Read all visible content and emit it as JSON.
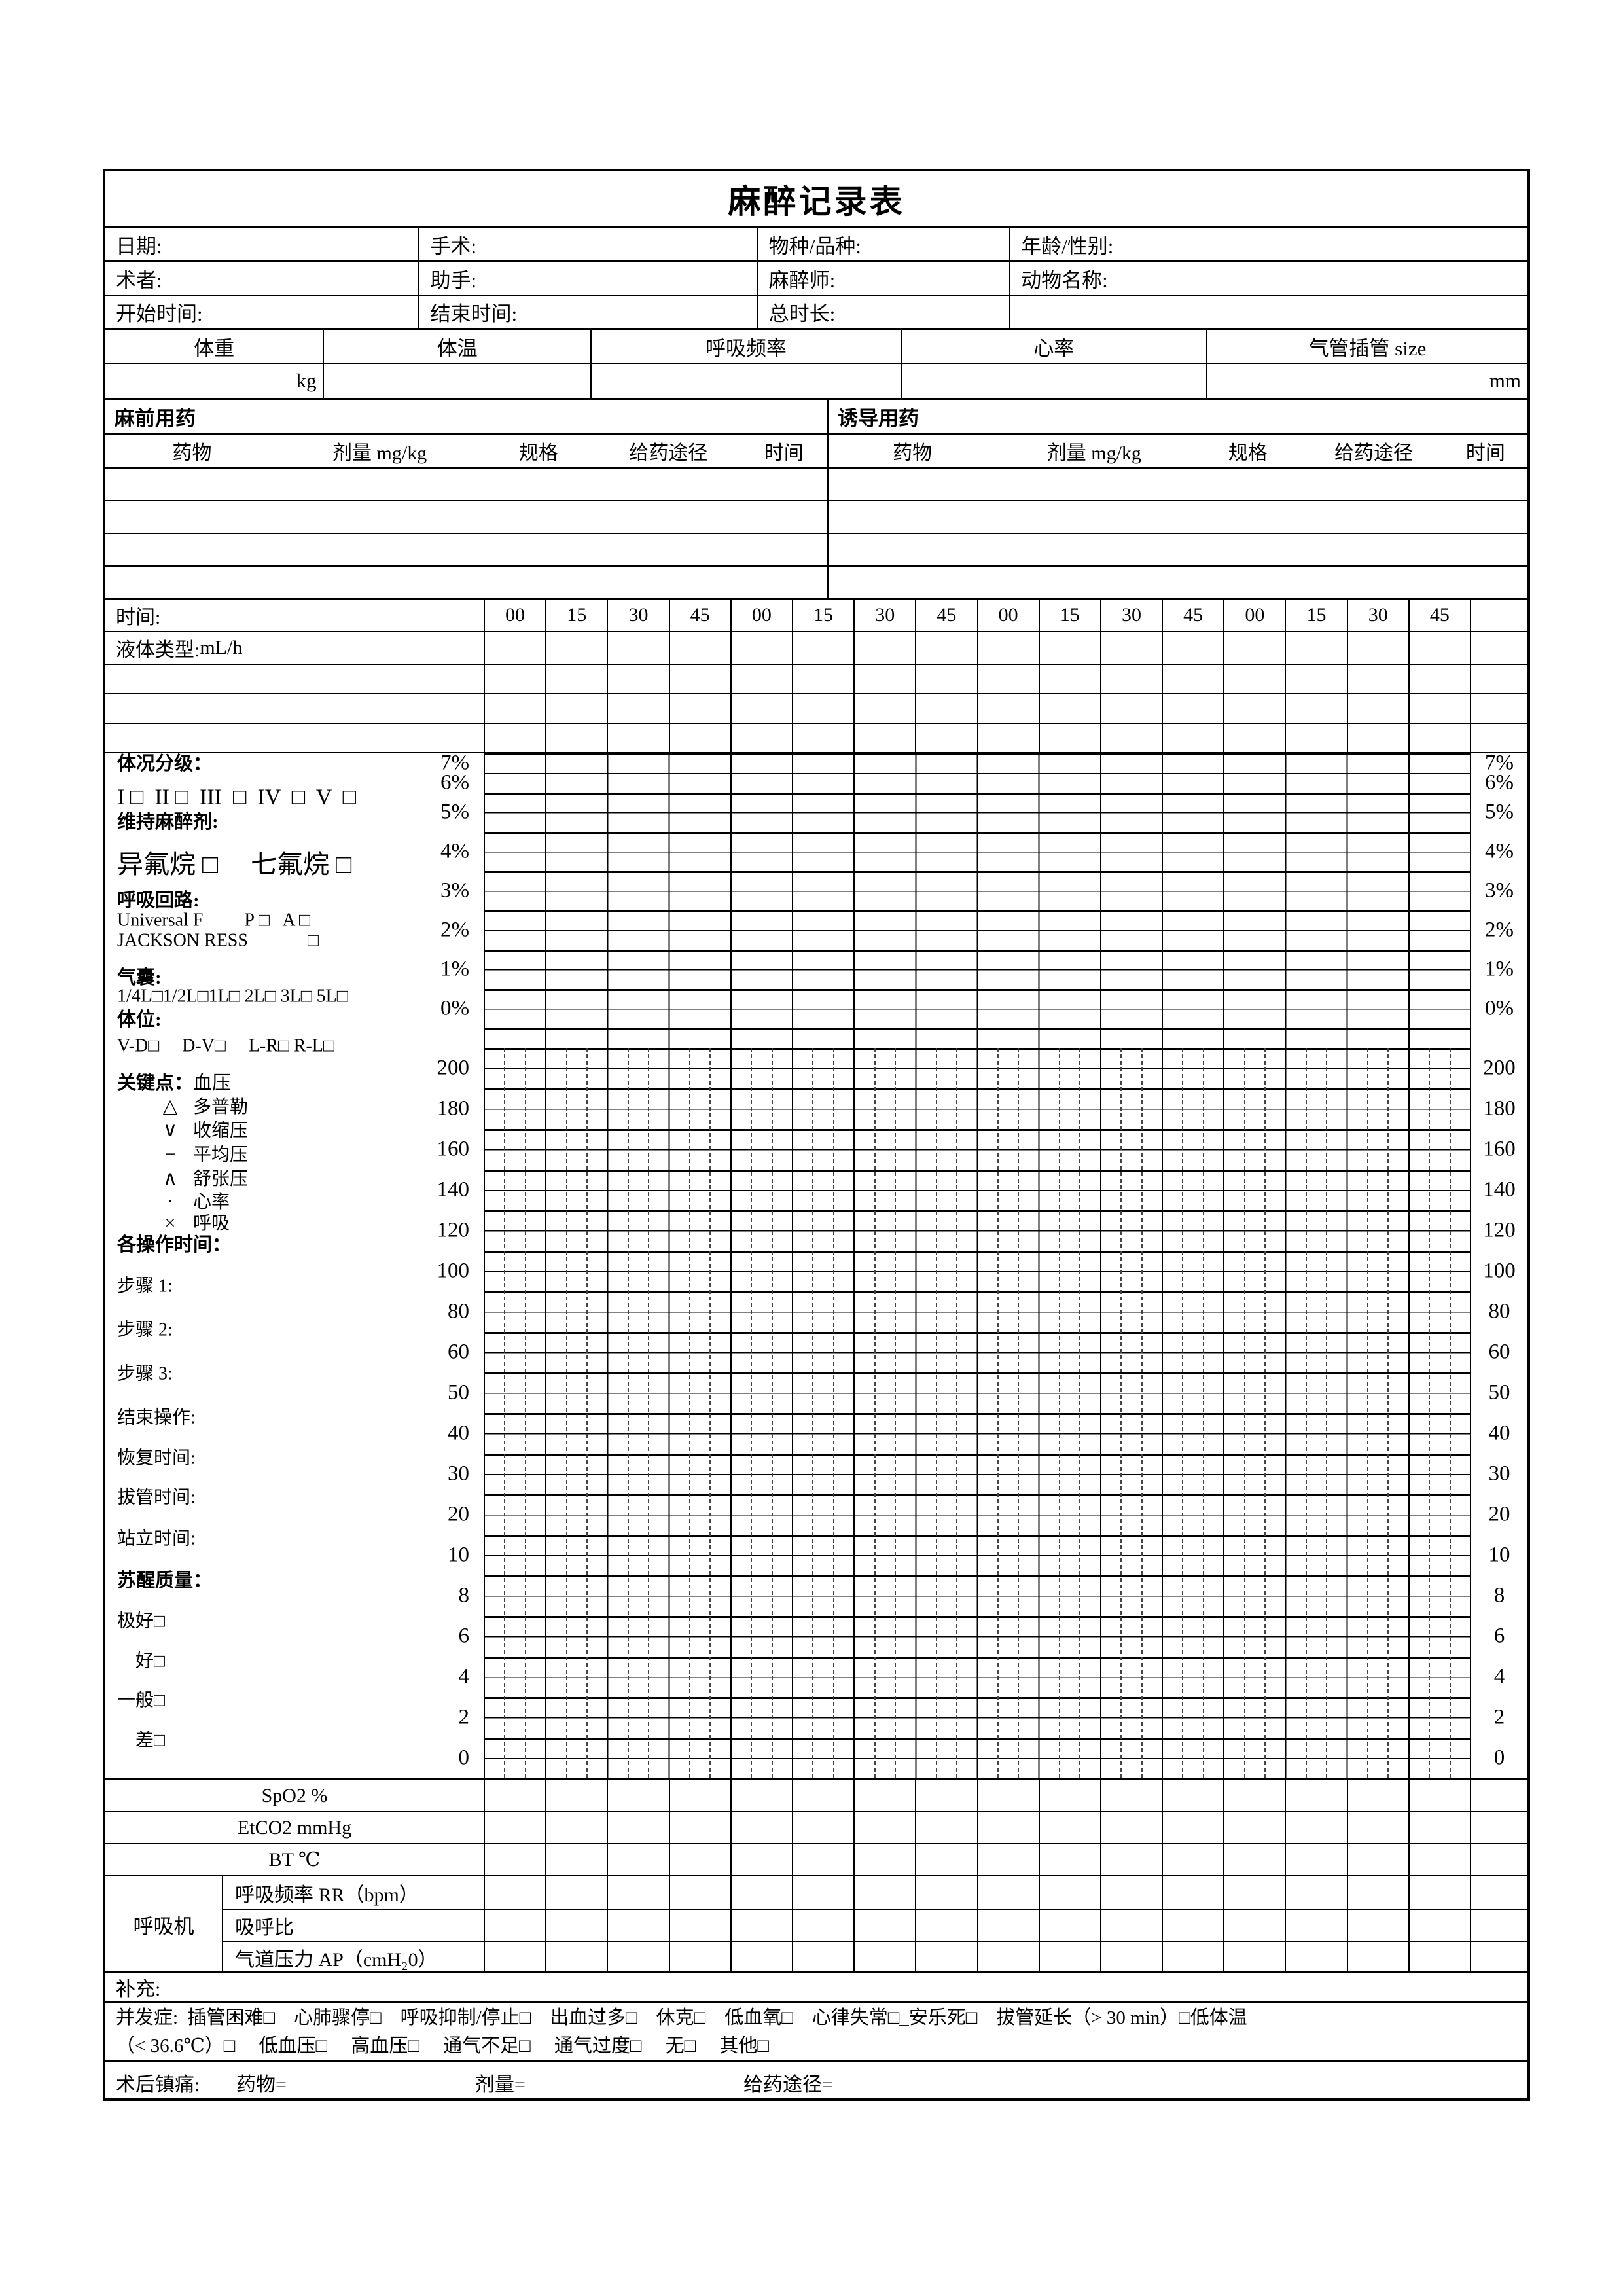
{
  "title": "麻醉记录表",
  "info": {
    "rows": [
      [
        "日期:",
        "手术:",
        "物种/品种:",
        "年龄/性别:"
      ],
      [
        "术者:",
        "助手:",
        "麻醉师:",
        "动物名称:"
      ],
      [
        "开始时间:",
        "结束时间:",
        "总时长:",
        ""
      ]
    ]
  },
  "vitals": {
    "headers": [
      "体重",
      "体温",
      "呼吸频率",
      "心率",
      "气管插管 size"
    ],
    "weight_unit": "kg",
    "tube_unit": "mm"
  },
  "meds": {
    "pre_label": "麻前用药",
    "induction_label": "诱导用药",
    "columns": [
      "药物",
      "剂量 mg/kg",
      "规格",
      "给药途径",
      "时间"
    ]
  },
  "timeline": {
    "label": "时间:",
    "ticks": [
      "00",
      "15",
      "30",
      "45",
      "00",
      "15",
      "30",
      "45",
      "00",
      "15",
      "30",
      "45",
      "00",
      "15",
      "30",
      "45"
    ]
  },
  "fluid": {
    "label": "液体类型:",
    "unit": "mL/h"
  },
  "sidebar": {
    "lines": [
      {
        "text": "体况分级：",
        "style": "head"
      },
      {
        "text": "I □  II □  III  □  IV  □  V  □",
        "style": "roman"
      },
      {
        "text": "维持麻醉剂:",
        "style": "head"
      },
      {
        "text": "异氟烷 □　 七氟烷 □",
        "style": "big"
      },
      {
        "text": "呼吸回路:",
        "style": "head"
      },
      {
        "text": "Universal F　　 P □   A □",
        "style": "plain"
      },
      {
        "text": "JACKSON RESS　　　 □",
        "style": "plain"
      },
      {
        "text": "气囊:",
        "style": "head"
      },
      {
        "text": "1/4L□1/2L□1L□ 2L□ 3L□ 5L□",
        "style": "plain"
      },
      {
        "text": "体位:",
        "style": "head"
      },
      {
        "text": "V-D□　 D-V□　 L-R□ R-L□",
        "style": "plain"
      },
      {
        "text": "关键点：",
        "suffix": "血压",
        "style": "head"
      },
      {
        "sym": "△",
        "text": "多普勒",
        "style": "sym"
      },
      {
        "sym": "∨",
        "text": "收缩压",
        "style": "sym"
      },
      {
        "sym": "−",
        "text": "平均压",
        "style": "sym"
      },
      {
        "sym": "∧",
        "text": "舒张压",
        "style": "sym"
      },
      {
        "sym": "·",
        "text": "心率",
        "style": "sym"
      },
      {
        "sym": "×",
        "text": "呼吸",
        "style": "sym"
      },
      {
        "text": "各操作时间：",
        "style": "head"
      },
      {
        "text": "步骤 1:",
        "style": "plain"
      },
      {
        "text": "步骤 2:",
        "style": "plain"
      },
      {
        "text": "步骤 3:",
        "style": "plain"
      },
      {
        "text": "结束操作:",
        "style": "plain"
      },
      {
        "text": "恢复时间:",
        "style": "plain"
      },
      {
        "text": "拔管时间:",
        "style": "plain"
      },
      {
        "text": "站立时间:",
        "style": "plain"
      },
      {
        "text": "苏醒质量：",
        "style": "head"
      },
      {
        "text": "极好□",
        "style": "plain"
      },
      {
        "text": "　好□",
        "style": "plain"
      },
      {
        "text": "一般□",
        "style": "plain"
      },
      {
        "text": "　差□",
        "style": "plain"
      }
    ]
  },
  "scales": {
    "percent": [
      "7%",
      "6%",
      "5%",
      "4%",
      "3%",
      "2%",
      "1%",
      "0%"
    ],
    "numeric": [
      "200",
      "180",
      "160",
      "140",
      "120",
      "100",
      "80",
      "60",
      "50",
      "40",
      "30",
      "20",
      "10",
      "8",
      "6",
      "4",
      "2",
      "0"
    ]
  },
  "monitors": {
    "rows": [
      "SpO2 %",
      "EtCO2 mmHg",
      "BT  ℃"
    ],
    "ventilator": {
      "label": "呼吸机",
      "rows": [
        "呼吸频率 RR（bpm）",
        "吸呼比",
        "气道压力 AP（cmH₂0）"
      ]
    }
  },
  "supplement": {
    "label": "补充:"
  },
  "complications": {
    "lines": [
      "并发症:  插管困难□　心肺骤停□　呼吸抑制/停止□　出血过多□　休克□　低血氧□　心律失常□_安乐死□　拔管延长（> 30 min）□低体温",
      "（< 36.6℃）□　 低血压□　 高血压□　 通气不足□　 通气过度□　 无□　 其他□"
    ]
  },
  "postop": {
    "label": "术后镇痛:",
    "drug": "药物=",
    "dose": "剂量=",
    "route": "给药途径="
  }
}
